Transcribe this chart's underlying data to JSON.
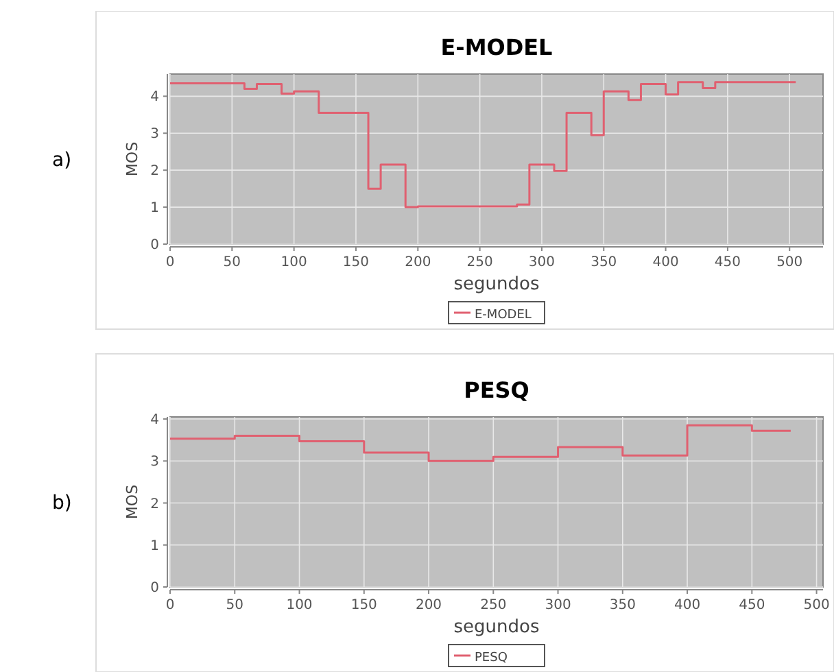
{
  "chart_data": [
    {
      "type": "step",
      "title": "E-MODEL",
      "xlabel": "segundos",
      "ylabel": "MOS",
      "annotations": [
        "a)"
      ],
      "xlim": [
        0,
        527
      ],
      "xticks": [
        0,
        50,
        100,
        150,
        200,
        250,
        300,
        350,
        400,
        450,
        500
      ],
      "ylim": [
        0,
        4.6
      ],
      "yticks": [
        0,
        1,
        2,
        3,
        4
      ],
      "grid": true,
      "legend": "bottom",
      "marker": "none",
      "series": [
        {
          "name": "E-MODEL",
          "color": "#e06070",
          "x": [
            0,
            60,
            70,
            90,
            100,
            120,
            160,
            170,
            190,
            200,
            280,
            290,
            310,
            320,
            340,
            350,
            370,
            380,
            400,
            410,
            430,
            440,
            505
          ],
          "values": [
            4.35,
            4.2,
            4.33,
            4.07,
            4.13,
            3.55,
            1.5,
            2.15,
            1.0,
            1.02,
            1.07,
            2.15,
            1.98,
            3.55,
            2.95,
            4.13,
            3.9,
            4.33,
            4.05,
            4.38,
            4.22,
            4.38,
            4.38
          ]
        }
      ]
    },
    {
      "type": "step",
      "title": "PESQ",
      "xlabel": "segundos",
      "ylabel": "MOS",
      "annotations": [
        "b)"
      ],
      "xlim": [
        0,
        505
      ],
      "xticks": [
        0,
        50,
        100,
        150,
        200,
        250,
        300,
        350,
        400,
        450,
        500
      ],
      "ylim": [
        0,
        4.05
      ],
      "yticks": [
        0,
        1,
        2,
        3,
        4
      ],
      "grid": true,
      "legend": "bottom",
      "marker": "none",
      "series": [
        {
          "name": "PESQ",
          "color": "#e06070",
          "x": [
            0,
            50,
            100,
            150,
            200,
            250,
            300,
            350,
            400,
            450,
            480
          ],
          "values": [
            3.53,
            3.6,
            3.47,
            3.2,
            3.0,
            3.1,
            3.33,
            3.13,
            3.85,
            3.72,
            3.72
          ]
        }
      ]
    }
  ]
}
